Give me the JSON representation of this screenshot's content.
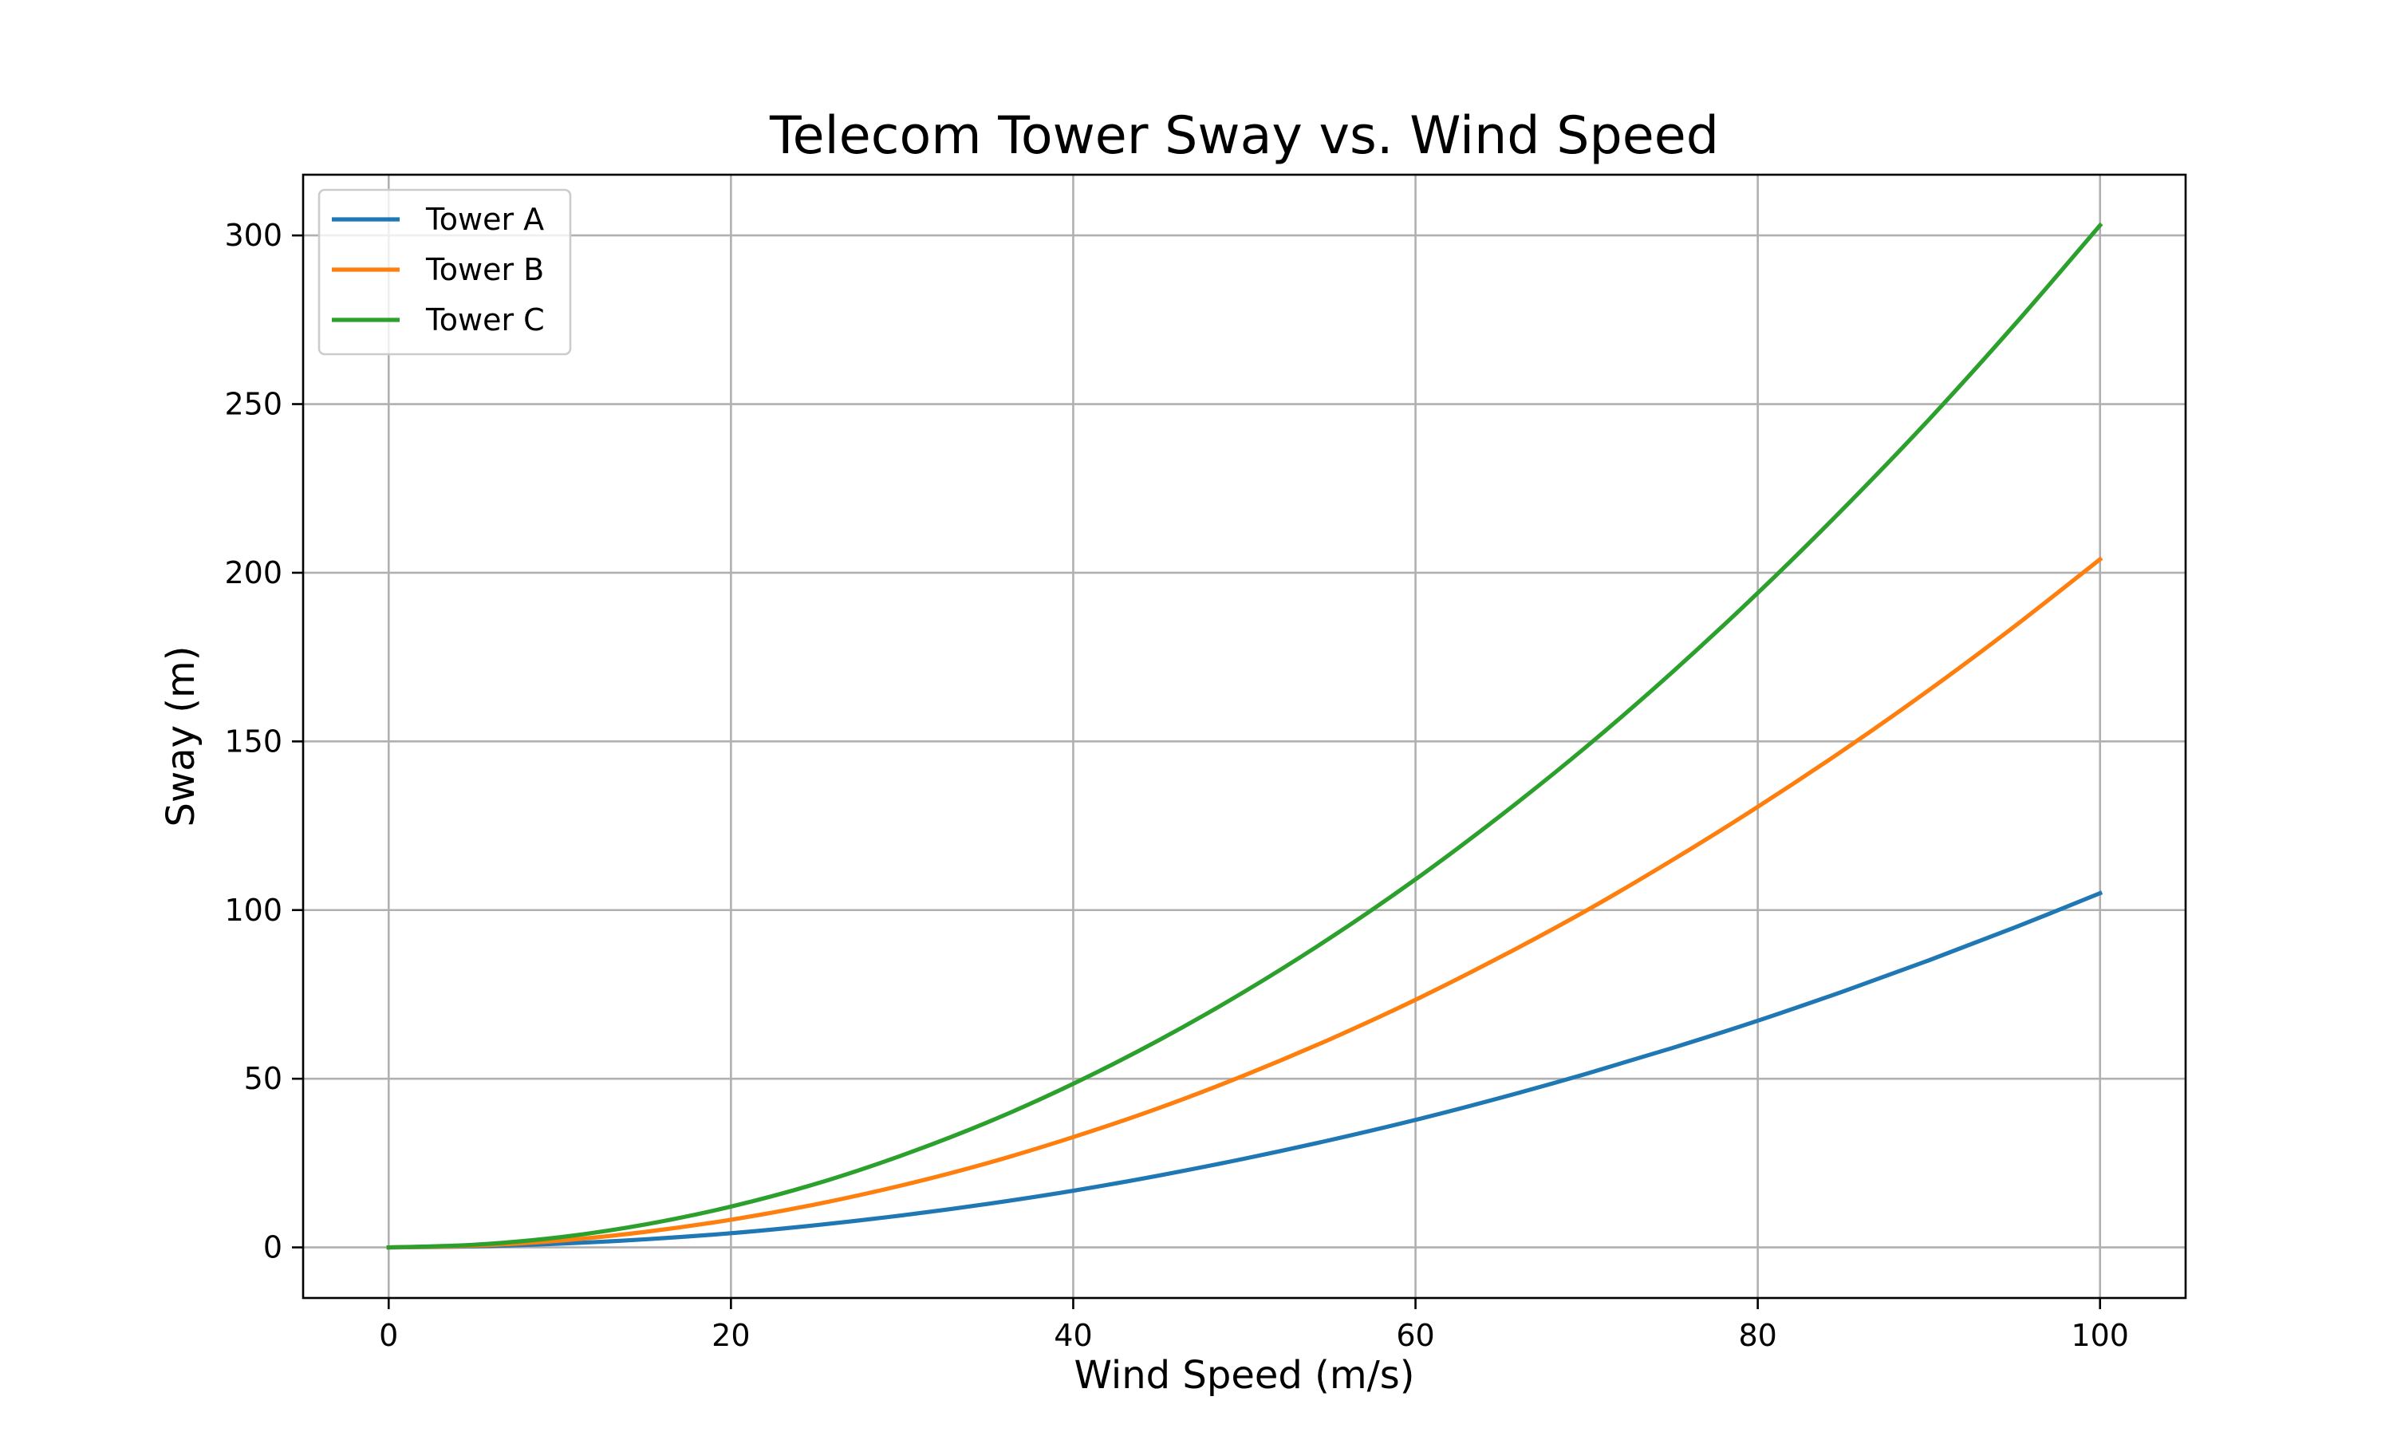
{
  "chart_data": {
    "type": "line",
    "title": "Telecom Tower Sway vs. Wind Speed",
    "xlabel": "Wind Speed (m/s)",
    "ylabel": "Sway (m)",
    "xlim": [
      -5,
      105
    ],
    "ylim": [
      -15,
      318
    ],
    "xticks": [
      0,
      20,
      40,
      60,
      80,
      100
    ],
    "yticks": [
      0,
      50,
      100,
      150,
      200,
      250,
      300
    ],
    "grid": true,
    "legend_position": "top-left",
    "x": [
      0,
      5,
      10,
      15,
      20,
      25,
      30,
      35,
      40,
      45,
      50,
      55,
      60,
      65,
      70,
      75,
      80,
      85,
      90,
      95,
      100
    ],
    "series": [
      {
        "name": "Tower A",
        "color": "#1f77b4",
        "values": [
          0,
          0.3,
          1.1,
          2.4,
          4.2,
          6.6,
          9.5,
          12.9,
          16.8,
          21.3,
          26.3,
          31.8,
          37.8,
          44.4,
          51.5,
          59.1,
          67.2,
          75.9,
          85.1,
          94.8,
          105
        ]
      },
      {
        "name": "Tower B",
        "color": "#ff7f0e",
        "values": [
          0,
          0.5,
          2.0,
          4.6,
          8.2,
          12.8,
          18.4,
          25.0,
          32.7,
          41.3,
          51.0,
          61.7,
          73.4,
          86.2,
          99.9,
          114.8,
          130.6,
          147.4,
          165.2,
          184.1,
          204
        ]
      },
      {
        "name": "Tower C",
        "color": "#2ca02c",
        "values": [
          0,
          0.8,
          3.0,
          6.8,
          12.1,
          18.9,
          27.3,
          37.1,
          48.5,
          61.4,
          75.8,
          91.7,
          109.1,
          128.1,
          148.5,
          170.5,
          194.0,
          219.0,
          245.4,
          273.5,
          303
        ]
      }
    ]
  }
}
